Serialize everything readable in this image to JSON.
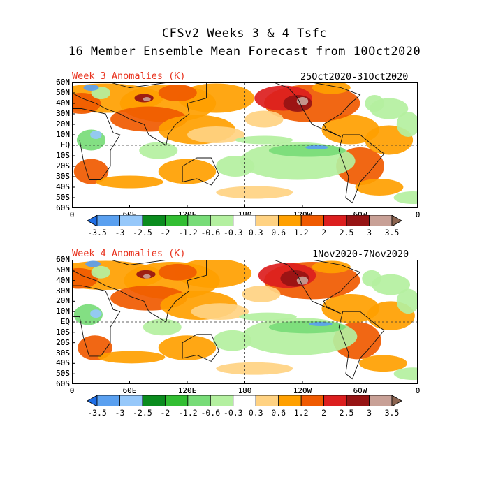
{
  "title": {
    "line1": "CFSv2 Weeks 3 & 4 Tsfc",
    "line2": "16 Member Ensemble Mean Forecast from 10Oct2020"
  },
  "latitudes": [
    "60N",
    "50N",
    "40N",
    "30N",
    "20N",
    "10N",
    "EQ",
    "10S",
    "20S",
    "30S",
    "40S",
    "50S",
    "60S"
  ],
  "longitudes": [
    "0",
    "60E",
    "120E",
    "180",
    "120W",
    "60W",
    "0"
  ],
  "colorbar": {
    "levels": [
      "-3.5",
      "-3",
      "-2.5",
      "-2",
      "-1.2",
      "-0.6",
      "-0.3",
      "0.3",
      "0.6",
      "1.2",
      "2",
      "2.5",
      "3",
      "3.5"
    ],
    "colors": [
      "#1e6ee6",
      "#5aa0f0",
      "#96c8fa",
      "#0a8c1e",
      "#32be32",
      "#78dc78",
      "#b4f0a0",
      "#ffffff",
      "#ffd282",
      "#ffa000",
      "#f05a00",
      "#dc1e1e",
      "#961414",
      "#c8a096",
      "#8c6450"
    ]
  },
  "panels": [
    {
      "label": "Week 3 Anomalies (K)",
      "dates": "25Oct2020-31Oct2020"
    },
    {
      "label": "Week 4 Anomalies (K)",
      "dates": "1Nov2020-7Nov2020"
    }
  ]
}
